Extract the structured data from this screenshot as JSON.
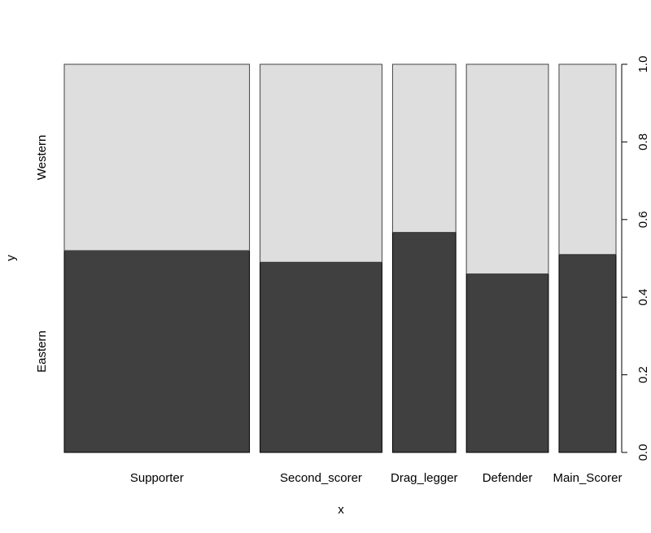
{
  "chart_data": {
    "type": "bar",
    "subtype": "spineplot",
    "title": "",
    "xlabel": "x",
    "ylabel": "y",
    "categories": [
      "Supporter",
      "Second_scorer",
      "Drag_legger",
      "Defender",
      "Main_Scorer"
    ],
    "category_share": [
      0.325,
      0.214,
      0.111,
      0.144,
      0.1
    ],
    "series": [
      {
        "name": "Eastern",
        "values": [
          0.52,
          0.49,
          0.567,
          0.46,
          0.51
        ],
        "color": "#404040"
      },
      {
        "name": "Western",
        "values": [
          0.48,
          0.51,
          0.433,
          0.54,
          0.49
        ],
        "color": "#dedede"
      }
    ],
    "left_axis_labels": [
      "Eastern",
      "Western"
    ],
    "right_axis": {
      "ylim": [
        0,
        1
      ],
      "ticks": [
        0.0,
        0.2,
        0.4,
        0.6,
        0.8,
        1.0
      ],
      "tick_labels": [
        "0.0",
        "0.2",
        "0.4",
        "0.6",
        "0.8",
        "1.0"
      ]
    },
    "grid": false,
    "legend": "none"
  }
}
